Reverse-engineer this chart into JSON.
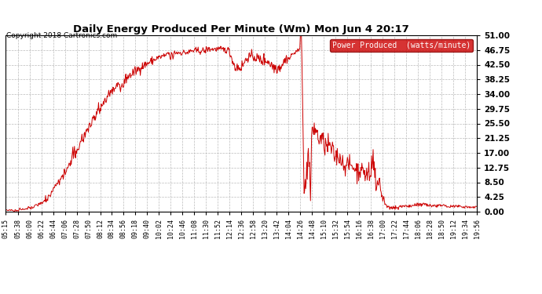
{
  "title": "Daily Energy Produced Per Minute (Wm) Mon Jun 4 20:17",
  "copyright": "Copyright 2018 Cartronics.com",
  "legend_label": "Power Produced  (watts/minute)",
  "legend_bg": "#cc0000",
  "legend_fg": "#ffffff",
  "line_color": "#cc0000",
  "bg_color": "#ffffff",
  "grid_color": "#bbbbbb",
  "yticks": [
    0.0,
    4.25,
    8.5,
    12.75,
    17.0,
    21.25,
    25.5,
    29.75,
    34.0,
    38.25,
    42.5,
    46.75,
    51.0
  ],
  "ymax": 51.0,
  "ymin": 0.0,
  "xtick_labels": [
    "05:15",
    "05:38",
    "06:00",
    "06:22",
    "06:44",
    "07:06",
    "07:28",
    "07:50",
    "08:12",
    "08:34",
    "08:56",
    "09:18",
    "09:40",
    "10:02",
    "10:24",
    "10:46",
    "11:08",
    "11:30",
    "11:52",
    "12:14",
    "12:36",
    "12:58",
    "13:20",
    "13:42",
    "14:04",
    "14:26",
    "14:48",
    "15:10",
    "15:32",
    "15:54",
    "16:16",
    "16:38",
    "17:00",
    "17:22",
    "17:44",
    "18:06",
    "18:28",
    "18:50",
    "19:12",
    "19:34",
    "19:56"
  ]
}
